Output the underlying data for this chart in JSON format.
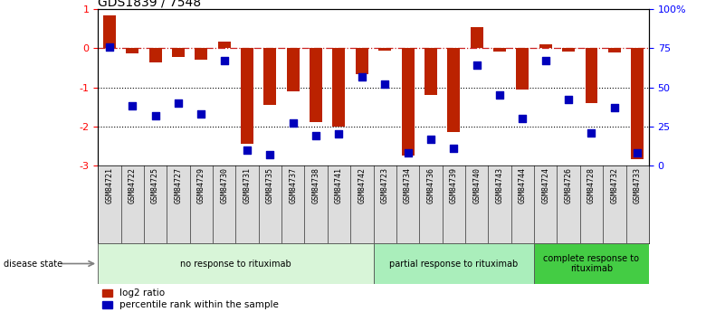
{
  "title": "GDS1839 / 7548",
  "samples": [
    "GSM84721",
    "GSM84722",
    "GSM84725",
    "GSM84727",
    "GSM84729",
    "GSM84730",
    "GSM84731",
    "GSM84735",
    "GSM84737",
    "GSM84738",
    "GSM84741",
    "GSM84742",
    "GSM84723",
    "GSM84734",
    "GSM84736",
    "GSM84739",
    "GSM84740",
    "GSM84743",
    "GSM84744",
    "GSM84724",
    "GSM84726",
    "GSM84728",
    "GSM84732",
    "GSM84733"
  ],
  "log2_ratio": [
    0.85,
    -0.12,
    -0.35,
    -0.22,
    -0.28,
    0.18,
    -2.45,
    -1.45,
    -1.1,
    -1.9,
    -2.0,
    -0.65,
    -0.05,
    -2.75,
    -1.2,
    -2.15,
    0.55,
    -0.08,
    -1.05,
    0.1,
    -0.08,
    -1.4,
    -0.1,
    -2.85
  ],
  "percentile": [
    76,
    38,
    32,
    40,
    33,
    67,
    10,
    7,
    27,
    19,
    20,
    57,
    52,
    8,
    17,
    11,
    64,
    45,
    30,
    67,
    42,
    21,
    37,
    8
  ],
  "groups": [
    {
      "label": "no response to rituximab",
      "start": 0,
      "end": 12,
      "color": "#d8f5d8"
    },
    {
      "label": "partial response to rituximab",
      "start": 12,
      "end": 19,
      "color": "#aaeebb"
    },
    {
      "label": "complete response to\nrituximab",
      "start": 19,
      "end": 24,
      "color": "#44cc44"
    }
  ],
  "bar_color": "#bb2200",
  "dot_color": "#0000bb",
  "ylim_left": [
    -3.0,
    1.0
  ],
  "ylim_right": [
    0,
    100
  ],
  "yticks_left": [
    -3,
    -2,
    -1,
    0,
    1
  ],
  "yticks_right": [
    0,
    25,
    50,
    75,
    100
  ],
  "ytick_labels_right": [
    "0",
    "25",
    "50",
    "75",
    "100%"
  ],
  "dotted_lines": [
    -1,
    -2
  ],
  "background_color": "#ffffff",
  "xlabel_bg": "#dddddd"
}
